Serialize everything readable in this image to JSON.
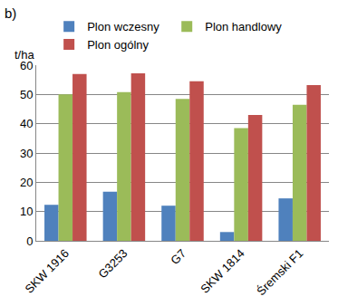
{
  "chart_data": {
    "type": "bar",
    "title": "b)",
    "y_label": "t/ha",
    "categories": [
      "SKW 1916",
      "G3253",
      "G7",
      "SKW 1814",
      "Śremski F1"
    ],
    "series": [
      {
        "name": "Plon wczesny",
        "color": "#4f81bd",
        "values": [
          12.3,
          16.8,
          12.0,
          3.0,
          14.5
        ]
      },
      {
        "name": "Plon handlowy",
        "color": "#9bbb59",
        "values": [
          50.0,
          50.8,
          48.5,
          38.5,
          46.5
        ]
      },
      {
        "name": "Plon ogólny",
        "color": "#c0504d",
        "values": [
          57.0,
          57.2,
          54.5,
          43.0,
          53.2
        ]
      }
    ],
    "ylim": [
      0,
      60
    ],
    "yticks": [
      0,
      10,
      20,
      30,
      40,
      50,
      60
    ],
    "grid": true,
    "legend": "top"
  }
}
